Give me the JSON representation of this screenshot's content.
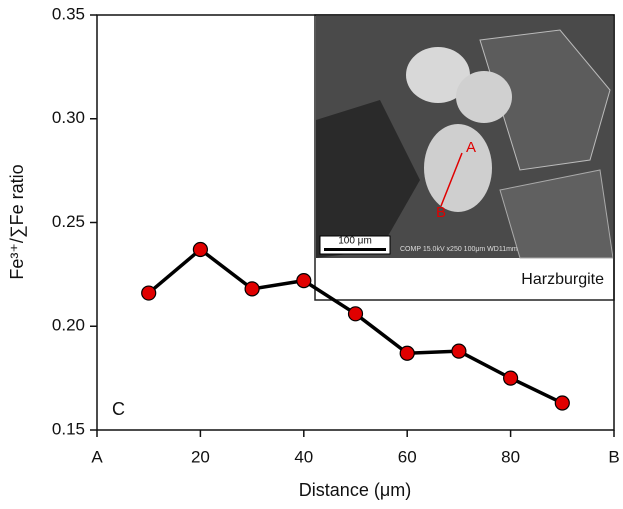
{
  "chart_data": {
    "type": "line",
    "x_label": "Distance (μm)",
    "y_label": "Fe³⁺/∑Fe ratio",
    "panel_label": "C",
    "x": [
      10,
      20,
      30,
      40,
      50,
      60,
      70,
      80,
      90
    ],
    "series": [
      {
        "color": "#e00000",
        "values": [
          0.216,
          0.237,
          0.218,
          0.222,
          0.206,
          0.187,
          0.188,
          0.175,
          0.163
        ]
      }
    ],
    "xlim": [
      0,
      100
    ],
    "xticks": [
      {
        "value": 0,
        "label": "A"
      },
      20,
      40,
      60,
      80,
      {
        "value": 100,
        "label": "B"
      }
    ],
    "ylim": [
      0.15,
      0.35
    ],
    "yticks": [
      0.15,
      {
        "value": 0.2,
        "label": "0.20"
      },
      0.25,
      {
        "value": 0.3,
        "label": "0.30"
      },
      0.35
    ],
    "inset": {
      "point_a": "A",
      "point_b": "B",
      "scale_bar": "100 μm",
      "info": "COMP 15.0kV x250 100μm WD11mm",
      "rock": "Harzburgite"
    }
  }
}
